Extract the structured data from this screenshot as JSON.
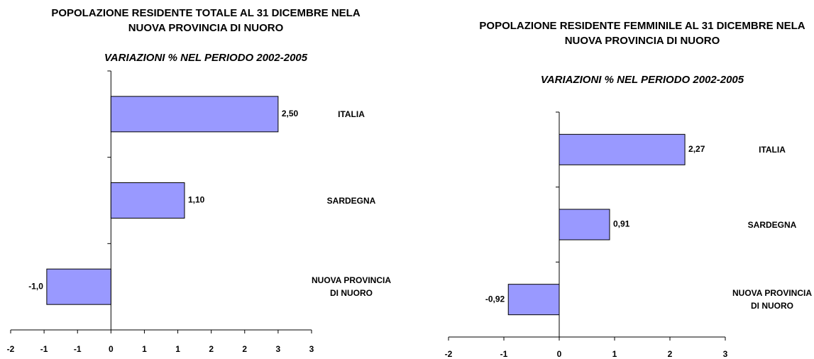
{
  "chart_data": [
    {
      "type": "bar",
      "orientation": "horizontal",
      "title": "POPOLAZIONE RESIDENTE TOTALE AL 31 DICEMBRE NELA NUOVA PROVINCIA DI NUORO",
      "subtitle": "VARIAZIONI % NEL PERIODO 2002-2005",
      "categories": [
        "ITALIA",
        "SARDEGNA",
        "NUOVA PROVINCIA DI NUORO"
      ],
      "values": [
        2.5,
        1.1,
        -0.96
      ],
      "value_labels": [
        "2,50",
        "1,10",
        "-1,0"
      ],
      "color": "#9999ff",
      "xlim": [
        -1.5,
        3
      ],
      "xticks": [
        {
          "value": -1.5,
          "label": "-2"
        },
        {
          "value": -1,
          "label": "-1"
        },
        {
          "value": -0.5,
          "label": "-1"
        },
        0,
        {
          "value": 0.5,
          "label": "1"
        },
        1,
        {
          "value": 1.5,
          "label": "2"
        },
        2,
        {
          "value": 2.5,
          "label": "3"
        },
        3
      ]
    },
    {
      "type": "bar",
      "orientation": "horizontal",
      "title": "POPOLAZIONE RESIDENTE FEMMINILE AL 31 DICEMBRE NELA NUOVA PROVINCIA DI NUORO",
      "subtitle": "VARIAZIONI % NEL PERIODO 2002-2005",
      "categories": [
        "ITALIA",
        "SARDEGNA",
        "NUOVA PROVINCIA DI NUORO"
      ],
      "values": [
        2.27,
        0.91,
        -0.92
      ],
      "value_labels": [
        "2,27",
        "0,91",
        "-0,92"
      ],
      "color": "#9999ff",
      "xlim": [
        -2,
        3
      ],
      "xticks": [
        -2,
        -1,
        0,
        1,
        2,
        3
      ]
    }
  ]
}
